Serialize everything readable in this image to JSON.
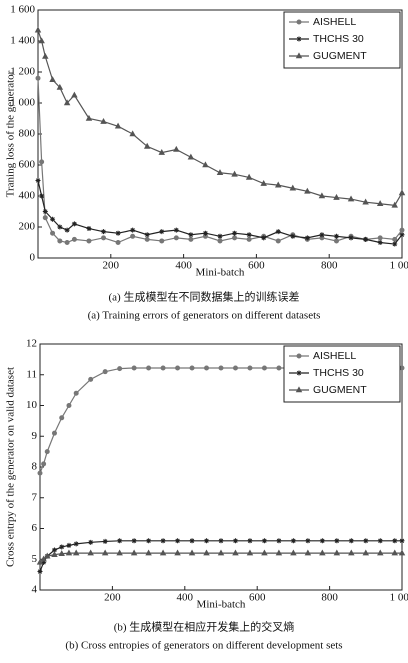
{
  "chart_data": [
    {
      "type": "line",
      "xlabel": "Mini-batch",
      "ylabel": "Traning loss of the generator",
      "x": [
        0,
        10,
        20,
        40,
        60,
        80,
        100,
        140,
        180,
        220,
        260,
        300,
        340,
        380,
        420,
        460,
        500,
        540,
        580,
        620,
        660,
        700,
        740,
        780,
        820,
        860,
        900,
        940,
        980,
        1000
      ],
      "xlim": [
        0,
        1000
      ],
      "xticks": [
        200,
        400,
        600,
        800,
        {
          "value": 1000,
          "label": "1 000"
        }
      ],
      "ylim": [
        0,
        1600
      ],
      "yticks": [
        0,
        200,
        400,
        600,
        800,
        {
          "value": 1000,
          "label": "1 000"
        },
        {
          "value": 1200,
          "label": "1 200"
        },
        {
          "value": 1400,
          "label": "1 400"
        },
        {
          "value": 1600,
          "label": "1 600"
        }
      ],
      "legend": "upper right",
      "series": [
        {
          "name": "AISHELL",
          "color": "#777777",
          "marker": "circle",
          "values": [
            1160,
            620,
            260,
            160,
            110,
            100,
            120,
            110,
            130,
            100,
            140,
            120,
            110,
            130,
            120,
            140,
            110,
            130,
            120,
            140,
            110,
            150,
            120,
            130,
            110,
            140,
            120,
            130,
            120,
            180
          ]
        },
        {
          "name": "THCHS 30",
          "color": "#222222",
          "marker": "star",
          "values": [
            500,
            400,
            300,
            250,
            200,
            180,
            220,
            190,
            170,
            160,
            180,
            150,
            170,
            180,
            150,
            160,
            140,
            160,
            150,
            130,
            170,
            140,
            130,
            150,
            140,
            130,
            120,
            100,
            90,
            150
          ]
        },
        {
          "name": "GUGMENT",
          "color": "#555555",
          "marker": "triangle",
          "values": [
            1470,
            1400,
            1300,
            1150,
            1100,
            1000,
            1050,
            900,
            880,
            850,
            800,
            720,
            680,
            700,
            650,
            600,
            550,
            540,
            520,
            480,
            470,
            450,
            430,
            400,
            390,
            380,
            360,
            350,
            340,
            420
          ]
        }
      ],
      "caption": [
        "(a) 生成模型在不同数据集上的训练误差",
        "(a) Training errors of generators on different datasets"
      ]
    },
    {
      "type": "line",
      "xlabel": "Mini-batch",
      "ylabel": "Cross entrpy of the generator on valid dataset",
      "x": [
        0,
        10,
        20,
        40,
        60,
        80,
        100,
        140,
        180,
        220,
        260,
        300,
        340,
        380,
        420,
        460,
        500,
        540,
        580,
        620,
        660,
        700,
        740,
        780,
        820,
        860,
        900,
        940,
        980,
        1000
      ],
      "xlim": [
        0,
        1000
      ],
      "xticks": [
        200,
        400,
        600,
        800,
        {
          "value": 1000,
          "label": "1 000"
        }
      ],
      "ylim": [
        4,
        12
      ],
      "yticks": [
        4,
        5,
        6,
        7,
        8,
        9,
        10,
        11,
        12
      ],
      "legend": "upper right",
      "series": [
        {
          "name": "AISHELL",
          "color": "#777777",
          "marker": "circle",
          "values": [
            7.8,
            8.1,
            8.5,
            9.1,
            9.6,
            10.0,
            10.4,
            10.85,
            11.1,
            11.2,
            11.22,
            11.22,
            11.22,
            11.22,
            11.22,
            11.22,
            11.22,
            11.22,
            11.22,
            11.22,
            11.22,
            11.22,
            11.22,
            11.22,
            11.22,
            11.22,
            11.22,
            11.22,
            11.22,
            11.22
          ]
        },
        {
          "name": "THCHS 30",
          "color": "#222222",
          "marker": "star",
          "values": [
            4.6,
            4.9,
            5.1,
            5.3,
            5.4,
            5.45,
            5.5,
            5.55,
            5.58,
            5.6,
            5.6,
            5.6,
            5.6,
            5.6,
            5.6,
            5.6,
            5.6,
            5.6,
            5.6,
            5.6,
            5.6,
            5.6,
            5.6,
            5.6,
            5.6,
            5.6,
            5.6,
            5.6,
            5.6,
            5.6
          ]
        },
        {
          "name": "GUGMENT",
          "color": "#555555",
          "marker": "triangle",
          "values": [
            4.9,
            5.0,
            5.1,
            5.15,
            5.18,
            5.2,
            5.2,
            5.2,
            5.2,
            5.2,
            5.2,
            5.2,
            5.2,
            5.2,
            5.2,
            5.2,
            5.2,
            5.2,
            5.2,
            5.2,
            5.2,
            5.2,
            5.2,
            5.2,
            5.2,
            5.2,
            5.2,
            5.2,
            5.2,
            5.2
          ]
        }
      ],
      "caption": [
        "(b) 生成模型在相应开发集上的交叉熵",
        "(b) Cross entropies of generators on different development sets"
      ]
    }
  ]
}
